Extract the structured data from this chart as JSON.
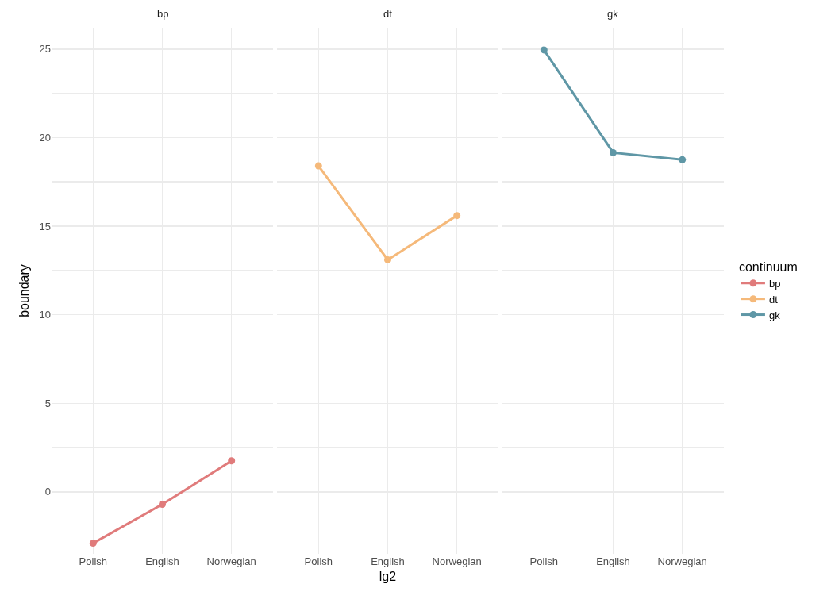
{
  "chart_data": [
    {
      "type": "line",
      "title": "bp",
      "ylabel": "boundary",
      "categories": [
        "Polish",
        "English",
        "Norwegian"
      ],
      "series": [
        {
          "name": "bp",
          "color": "#e07b7b",
          "values": [
            -2.9,
            -0.7,
            1.75
          ]
        }
      ],
      "ylim": [
        -3.5,
        26.2
      ],
      "yticks": [
        {
          "value": -2.5,
          "label": null
        },
        0,
        {
          "value": 2.5,
          "label": null
        },
        5,
        {
          "value": 7.5,
          "label": null
        },
        10,
        {
          "value": 12.5,
          "label": null
        },
        15,
        {
          "value": 17.5,
          "label": null
        },
        20,
        {
          "value": 22.5,
          "label": null
        },
        25
      ],
      "grid": true,
      "legend": "right",
      "marker": "circle"
    },
    {
      "type": "line",
      "title": "dt",
      "xlabel": "lg2",
      "categories": [
        "Polish",
        "English",
        "Norwegian"
      ],
      "series": [
        {
          "name": "dt",
          "color": "#f5b97a",
          "values": [
            18.4,
            13.1,
            15.6
          ]
        }
      ],
      "ylim": [
        -3.5,
        26.2
      ],
      "yticks": [
        {
          "value": -2.5,
          "label": null
        },
        0,
        {
          "value": 2.5,
          "label": null
        },
        5,
        {
          "value": 7.5,
          "label": null
        },
        10,
        {
          "value": 12.5,
          "label": null
        },
        15,
        {
          "value": 17.5,
          "label": null
        },
        20,
        {
          "value": 22.5,
          "label": null
        },
        25
      ],
      "grid": true,
      "legend": "right",
      "marker": "circle",
      "tick_labels": "x"
    },
    {
      "type": "line",
      "title": "gk",
      "legend_title": "continuum",
      "categories": [
        "Polish",
        "English",
        "Norwegian"
      ],
      "series": [
        {
          "name": "gk",
          "color": "#5f97a6",
          "values": [
            24.95,
            19.15,
            18.75
          ]
        }
      ],
      "ylim": [
        -3.5,
        26.2
      ],
      "yticks": [
        {
          "value": -2.5,
          "label": null
        },
        0,
        {
          "value": 2.5,
          "label": null
        },
        5,
        {
          "value": 7.5,
          "label": null
        },
        10,
        {
          "value": 12.5,
          "label": null
        },
        15,
        {
          "value": 17.5,
          "label": null
        },
        20,
        {
          "value": 22.5,
          "label": null
        },
        25
      ],
      "grid": true,
      "legend": "right",
      "marker": "circle",
      "tick_labels": "x"
    }
  ]
}
